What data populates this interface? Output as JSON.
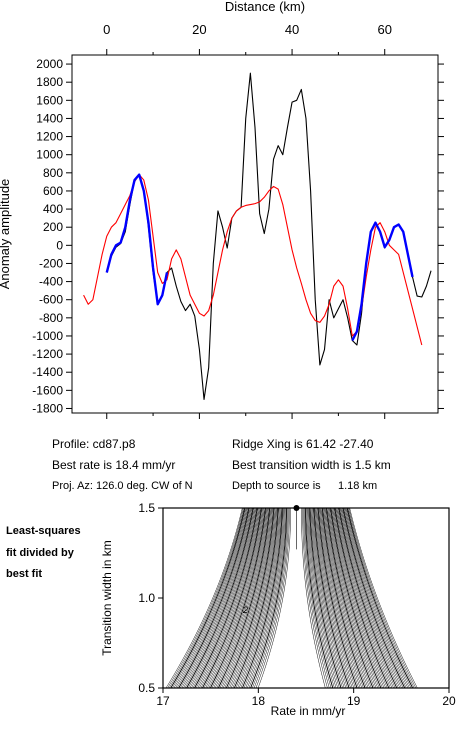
{
  "chart_data": [
    {
      "type": "line",
      "title": "",
      "xlabel": "Distance (km)",
      "ylabel": "Anomaly amplitude",
      "xlim": [
        -7.5,
        71.5
      ],
      "ylim": [
        -1850,
        2100
      ],
      "x_ticks": [
        0,
        20,
        40,
        60
      ],
      "y_ticks": [
        -1800,
        -1600,
        -1400,
        -1200,
        -1000,
        -800,
        -600,
        -400,
        -200,
        0,
        200,
        400,
        600,
        800,
        1000,
        1200,
        1400,
        1600,
        1800,
        2000
      ],
      "series": [
        {
          "color": "#000000",
          "values": [
            [
              0,
              -300
            ],
            [
              1,
              -120
            ],
            [
              2,
              -20
            ],
            [
              3,
              20
            ],
            [
              4,
              150
            ],
            [
              5,
              450
            ],
            [
              6,
              720
            ],
            [
              7,
              780
            ],
            [
              8,
              620
            ],
            [
              9,
              200
            ],
            [
              10,
              -300
            ],
            [
              11,
              -650
            ],
            [
              12,
              -560
            ],
            [
              13,
              -300
            ],
            [
              14,
              -250
            ],
            [
              15,
              -450
            ],
            [
              16,
              -620
            ],
            [
              17,
              -720
            ],
            [
              18,
              -650
            ],
            [
              19,
              -780
            ],
            [
              20,
              -1150
            ],
            [
              21,
              -1700
            ],
            [
              22,
              -1350
            ],
            [
              23,
              -200
            ],
            [
              24,
              380
            ],
            [
              25,
              200
            ],
            [
              26,
              -30
            ],
            [
              27,
              300
            ],
            [
              28,
              380
            ],
            [
              29,
              420
            ],
            [
              30,
              1400
            ],
            [
              31,
              1900
            ],
            [
              32,
              1300
            ],
            [
              33,
              350
            ],
            [
              34,
              130
            ],
            [
              35,
              400
            ],
            [
              36,
              950
            ],
            [
              37,
              1100
            ],
            [
              38,
              1000
            ],
            [
              39,
              1300
            ],
            [
              40,
              1580
            ],
            [
              41,
              1600
            ],
            [
              42,
              1720
            ],
            [
              43,
              1400
            ],
            [
              44,
              600
            ],
            [
              45,
              -600
            ],
            [
              46,
              -1320
            ],
            [
              47,
              -1150
            ],
            [
              48,
              -600
            ],
            [
              49,
              -800
            ],
            [
              50,
              -700
            ],
            [
              51,
              -600
            ],
            [
              52,
              -800
            ],
            [
              53,
              -1050
            ],
            [
              54,
              -1100
            ],
            [
              55,
              -750
            ],
            [
              56,
              -200
            ],
            [
              57,
              150
            ],
            [
              58,
              250
            ],
            [
              59,
              150
            ],
            [
              60,
              -30
            ],
            [
              61,
              50
            ],
            [
              62,
              200
            ],
            [
              63,
              230
            ],
            [
              64,
              150
            ],
            [
              65,
              -100
            ],
            [
              66,
              -350
            ],
            [
              67,
              -560
            ],
            [
              68,
              -570
            ],
            [
              69,
              -450
            ],
            [
              70,
              -280
            ]
          ]
        },
        {
          "color": "#ff0000",
          "values": [
            [
              -5,
              -550
            ],
            [
              -4,
              -650
            ],
            [
              -3,
              -600
            ],
            [
              -2,
              -350
            ],
            [
              -1,
              -100
            ],
            [
              0,
              100
            ],
            [
              1,
              200
            ],
            [
              2,
              250
            ],
            [
              3,
              350
            ],
            [
              4,
              450
            ],
            [
              5,
              550
            ],
            [
              6,
              700
            ],
            [
              7,
              780
            ],
            [
              8,
              720
            ],
            [
              9,
              500
            ],
            [
              10,
              100
            ],
            [
              11,
              -300
            ],
            [
              12,
              -420
            ],
            [
              13,
              -380
            ],
            [
              14,
              -150
            ],
            [
              15,
              -50
            ],
            [
              16,
              -150
            ],
            [
              17,
              -350
            ],
            [
              18,
              -550
            ],
            [
              19,
              -650
            ],
            [
              20,
              -750
            ],
            [
              21,
              -780
            ],
            [
              22,
              -720
            ],
            [
              23,
              -550
            ],
            [
              24,
              -300
            ],
            [
              25,
              -50
            ],
            [
              26,
              150
            ],
            [
              27,
              300
            ],
            [
              28,
              380
            ],
            [
              29,
              420
            ],
            [
              30,
              440
            ],
            [
              31,
              450
            ],
            [
              32,
              460
            ],
            [
              33,
              480
            ],
            [
              34,
              530
            ],
            [
              35,
              600
            ],
            [
              36,
              650
            ],
            [
              37,
              620
            ],
            [
              38,
              450
            ],
            [
              39,
              200
            ],
            [
              40,
              -50
            ],
            [
              41,
              -250
            ],
            [
              42,
              -420
            ],
            [
              43,
              -600
            ],
            [
              44,
              -750
            ],
            [
              45,
              -830
            ],
            [
              46,
              -850
            ],
            [
              47,
              -780
            ],
            [
              48,
              -650
            ],
            [
              49,
              -450
            ],
            [
              50,
              -380
            ],
            [
              51,
              -450
            ],
            [
              52,
              -700
            ],
            [
              53,
              -1000
            ],
            [
              54,
              -950
            ],
            [
              55,
              -700
            ],
            [
              56,
              -350
            ],
            [
              57,
              -50
            ],
            [
              58,
              200
            ],
            [
              59,
              250
            ],
            [
              60,
              150
            ],
            [
              61,
              0
            ],
            [
              62,
              -50
            ],
            [
              63,
              -100
            ],
            [
              64,
              -300
            ],
            [
              65,
              -500
            ],
            [
              66,
              -700
            ],
            [
              67,
              -900
            ],
            [
              68,
              -1100
            ]
          ]
        },
        {
          "color": "#0000ff",
          "values": [
            [
              0,
              -300
            ],
            [
              1,
              -100
            ],
            [
              2,
              0
            ],
            [
              3,
              30
            ],
            [
              4,
              200
            ],
            [
              5,
              500
            ],
            [
              6,
              720
            ],
            [
              7,
              780
            ],
            [
              8,
              600
            ],
            [
              9,
              250
            ],
            [
              10,
              -250
            ],
            [
              11,
              -650
            ],
            [
              12,
              -550
            ],
            [
              13,
              -300
            ],
            [
              53,
              -1050
            ],
            [
              54,
              -950
            ],
            [
              55,
              -650
            ],
            [
              56,
              -200
            ],
            [
              57,
              150
            ],
            [
              58,
              250
            ],
            [
              59,
              150
            ],
            [
              60,
              -20
            ],
            [
              61,
              60
            ],
            [
              62,
              200
            ],
            [
              63,
              230
            ],
            [
              64,
              150
            ],
            [
              65,
              -100
            ],
            [
              66,
              -350
            ]
          ]
        }
      ]
    },
    {
      "type": "contour",
      "title": "",
      "xlabel": "Rate in mm/yr",
      "ylabel": "Transition width in km",
      "xlim": [
        17,
        20
      ],
      "ylim": [
        0.5,
        1.5
      ],
      "x_ticks": [
        17,
        18,
        19,
        20
      ],
      "y_ticks": [
        0.5,
        1.0,
        1.5
      ],
      "contour_label": "2",
      "best_fit_point": [
        18.4,
        1.5
      ]
    }
  ],
  "info": {
    "profile": "Profile: cd87.p8",
    "ridge_xing": "Ridge Xing is 61.42 -27.40",
    "best_rate": "Best rate is 18.4 mm/yr",
    "best_width": "Best transition width is 1.5 km",
    "proj_az": "Proj. Az: 126.0 deg. CW of N",
    "depth": "Depth to source is",
    "depth_value": "1.18 km"
  },
  "side_label": [
    "Least-squares",
    "fit divided by",
    "best fit"
  ]
}
